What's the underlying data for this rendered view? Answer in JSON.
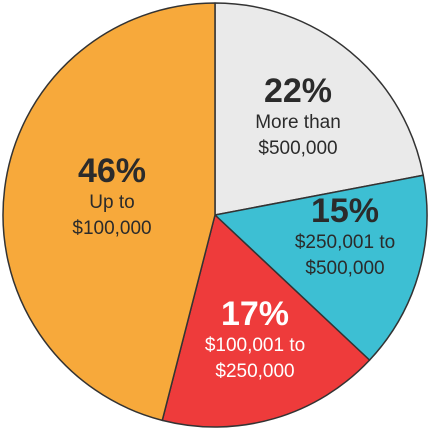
{
  "chart_data": {
    "type": "pie",
    "slices": [
      {
        "value": 22,
        "percent_label": "22%",
        "label_lines": [
          "More than",
          "$500,000"
        ],
        "color": "#EAEAEA",
        "text_color": "#2B2B2B"
      },
      {
        "value": 15,
        "percent_label": "15%",
        "label_lines": [
          "$250,001 to",
          "$500,000"
        ],
        "color": "#3DBFD3",
        "text_color": "#2B2B2B"
      },
      {
        "value": 17,
        "percent_label": "17%",
        "label_lines": [
          "$100,001 to",
          "$250,000"
        ],
        "color": "#EE3B3B",
        "text_color": "#FFFFFF"
      },
      {
        "value": 46,
        "percent_label": "46%",
        "label_lines": [
          "Up to",
          "$100,000"
        ],
        "color": "#F7A93B",
        "text_color": "#2B2B2B"
      }
    ],
    "start": "12 o'clock",
    "direction": "clockwise",
    "border_color": "#333333"
  }
}
